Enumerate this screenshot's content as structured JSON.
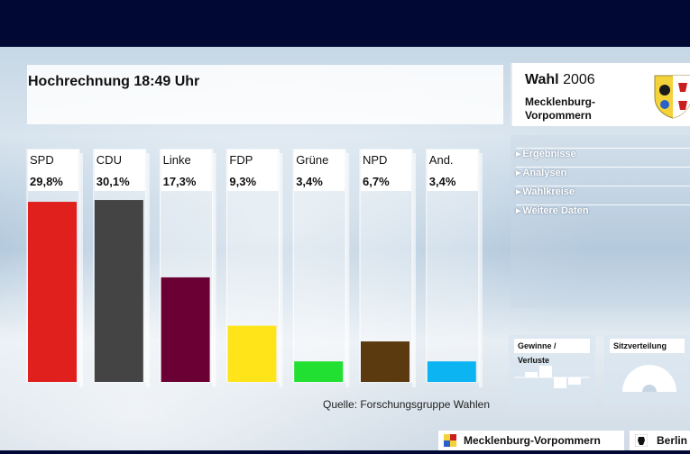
{
  "headline": "Hochrechnung 18:49 Uhr",
  "source": "Quelle: Forschungsgruppe Wahlen",
  "brand": {
    "word": "Wahl",
    "year": "2006",
    "region": "Mecklenburg-\nVorpommern"
  },
  "menu": [
    {
      "label": "Ergebnisse"
    },
    {
      "label": "Analysen"
    },
    {
      "label": "Wahlkreise"
    },
    {
      "label": "Weitere Daten"
    }
  ],
  "mini_panels": {
    "gains": "Gewinne / Verluste",
    "seats": "Sitzverteilung"
  },
  "footer_tabs": {
    "mv": "Mecklenburg-Vorpommern",
    "berlin": "Berlin"
  },
  "colors": {
    "header": "#000833"
  },
  "chart_data": {
    "type": "bar",
    "title": "Hochrechnung 18:49 Uhr",
    "categories": [
      "SPD",
      "CDU",
      "Linke",
      "FDP",
      "Grüne",
      "NPD",
      "And."
    ],
    "values": [
      29.8,
      30.1,
      17.3,
      9.3,
      3.4,
      6.7,
      3.4
    ],
    "value_labels": [
      "29,8%",
      "30,1%",
      "17,3%",
      "9,3%",
      "3,4%",
      "6,7%",
      "3,4%"
    ],
    "colors": [
      "#e0201c",
      "#444444",
      "#6b0035",
      "#ffe41a",
      "#22e032",
      "#5a3a0e",
      "#0cb4f2"
    ],
    "ylim": [
      0,
      31
    ],
    "grid": false
  }
}
